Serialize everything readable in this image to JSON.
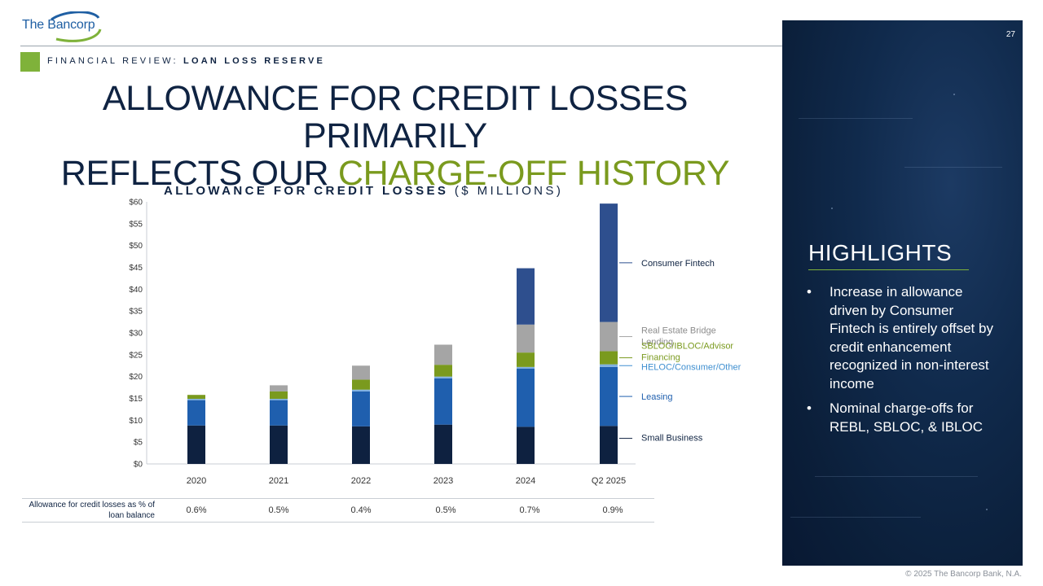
{
  "brand": {
    "name_part1": "The",
    "name_part2": "Bancorp"
  },
  "page_number": "27",
  "section": {
    "prefix": "FINANCIAL REVIEW:",
    "topic": "LOAN LOSS RESERVE"
  },
  "headline": {
    "line1": "ALLOWANCE FOR CREDIT LOSSES PRIMARILY",
    "line2_prefix": "REFLECTS OUR ",
    "line2_accent": "CHARGE-OFF HISTORY"
  },
  "chart_heading": {
    "bold": "ALLOWANCE FOR CREDIT LOSSES",
    "unit": "($ MILLIONS)"
  },
  "colors": {
    "navy": "#0f2342",
    "accent_green": "#7fb23a",
    "small_business": "#0e2140",
    "leasing": "#1f5fae",
    "heloc": "#7fb0e0",
    "sbloc": "#7a9a1e",
    "rebl": "#a5a5a5",
    "consumer_fintech": "#2e4f8e"
  },
  "chart_data": {
    "type": "bar",
    "stacked": true,
    "title": "ALLOWANCE FOR CREDIT LOSSES ($ MILLIONS)",
    "categories": [
      "2020",
      "2021",
      "2022",
      "2023",
      "2024",
      "Q2 2025"
    ],
    "ylim": [
      0,
      60
    ],
    "yticks": [
      "$0",
      "$5",
      "$10",
      "$15",
      "$20",
      "$25",
      "$30",
      "$35",
      "$40",
      "$45",
      "$50",
      "$55",
      "$60"
    ],
    "ytick_values": [
      0,
      5,
      10,
      15,
      20,
      25,
      30,
      35,
      40,
      45,
      50,
      55,
      60
    ],
    "series": [
      {
        "name": "Small Business",
        "color": "#0e2140",
        "label_color": "#0f2342",
        "values": [
          8.8,
          8.8,
          8.6,
          9.0,
          8.5,
          8.7
        ]
      },
      {
        "name": "Leasing",
        "color": "#1f5fae",
        "label_color": "#1f5fae",
        "values": [
          5.8,
          5.8,
          8.0,
          10.6,
          13.3,
          13.5
        ]
      },
      {
        "name": "HELOC/Consumer/Other",
        "color": "#7fb0e0",
        "label_color": "#3f8fd0",
        "values": [
          0.3,
          0.3,
          0.4,
          0.4,
          0.4,
          0.6
        ]
      },
      {
        "name": "SBLOC/IBLOC/Advisor Financing",
        "color": "#7a9a1e",
        "label_color": "#7a9a1e",
        "values": [
          0.9,
          1.7,
          2.3,
          2.7,
          3.3,
          3.0
        ]
      },
      {
        "name": "Real Estate Bridge Lending",
        "color": "#a5a5a5",
        "label_color": "#8c8c8c",
        "values": [
          0.0,
          1.4,
          3.2,
          4.6,
          6.4,
          6.7
        ]
      },
      {
        "name": "Consumer Fintech",
        "color": "#2e4f8e",
        "label_color": "#0f2342",
        "values": [
          0.0,
          0.0,
          0.0,
          0.0,
          12.9,
          27.1
        ]
      }
    ],
    "legend": {
      "placement": "right",
      "labels": [
        "Consumer Fintech",
        "Real Estate Bridge",
        "Lending",
        "SBLOC/IBLOC/Advisor",
        "Financing",
        "HELOC/Consumer/Other",
        "Leasing",
        "Small Business"
      ]
    },
    "grid": false
  },
  "ratio_table": {
    "label": "Allowance for credit losses as % of loan balance",
    "values": [
      "0.6%",
      "0.5%",
      "0.4%",
      "0.5%",
      "0.7%",
      "0.9%"
    ]
  },
  "highlights": {
    "title": "HIGHLIGHTS",
    "bullet": "•",
    "items": [
      "Increase in allowance driven by Consumer Fintech is entirely offset by credit enhancement recognized in non-interest income",
      "Nominal charge-offs for REBL, SBLOC, & IBLOC"
    ]
  },
  "footer": {
    "copyright": "© 2025 The Bancorp Bank, N.A."
  }
}
